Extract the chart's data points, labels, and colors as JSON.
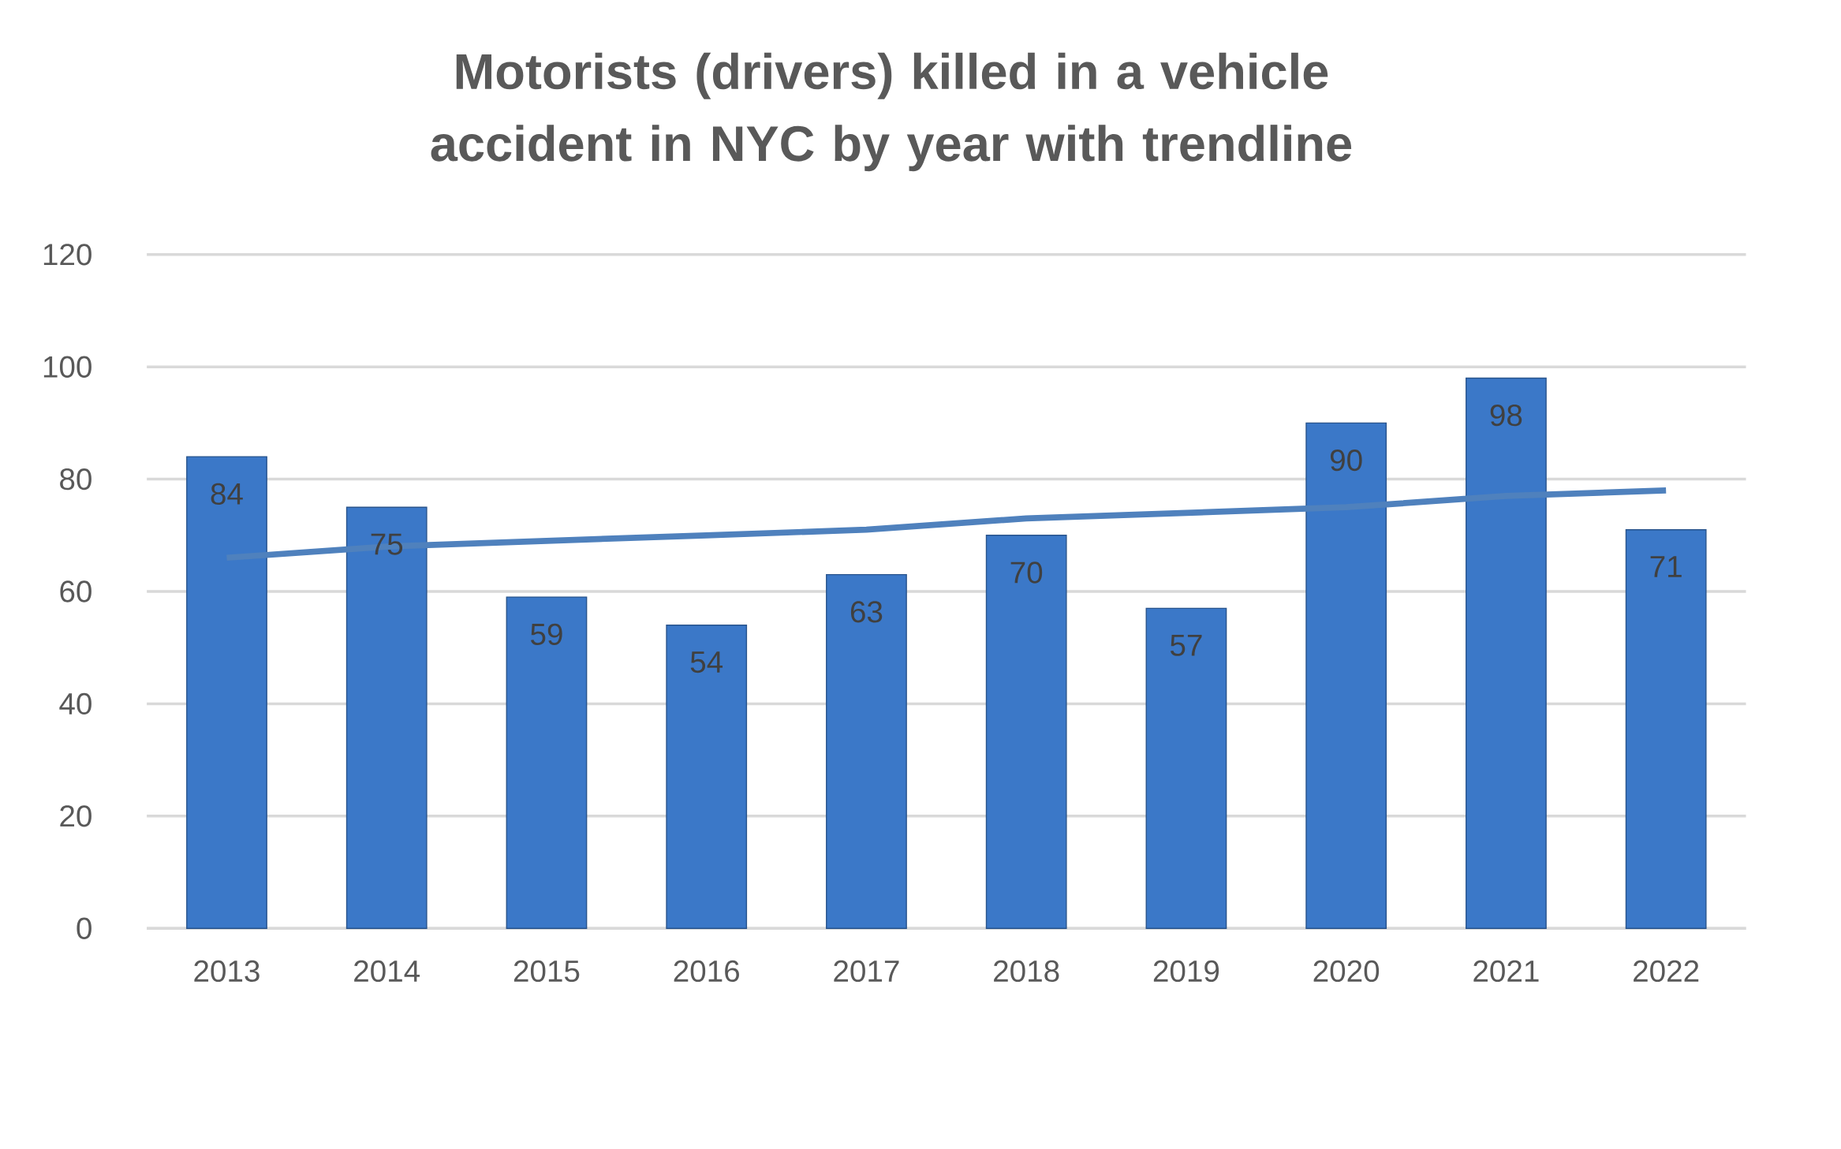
{
  "chart_data": {
    "type": "bar",
    "title": "Motorists (drivers) killed in a vehicle accident in NYC by year with trendline",
    "categories": [
      "2013",
      "2014",
      "2015",
      "2016",
      "2017",
      "2018",
      "2019",
      "2020",
      "2021",
      "2022"
    ],
    "ylim": [
      0,
      120
    ],
    "yticks": [
      0,
      20,
      40,
      60,
      80,
      100,
      120
    ],
    "grid": "y",
    "series": [
      {
        "color": "#3b78c8",
        "values": [
          84,
          75,
          59,
          54,
          63,
          70,
          57,
          90,
          98,
          71
        ],
        "value_labels": [
          "84",
          "75",
          "59",
          "54",
          "63",
          "70",
          "57",
          "90",
          "98",
          "71"
        ]
      },
      {
        "type": "line",
        "color": "#4f81bd",
        "values": [
          66,
          68,
          69,
          70,
          71,
          73,
          74,
          75,
          77,
          78
        ]
      }
    ]
  }
}
